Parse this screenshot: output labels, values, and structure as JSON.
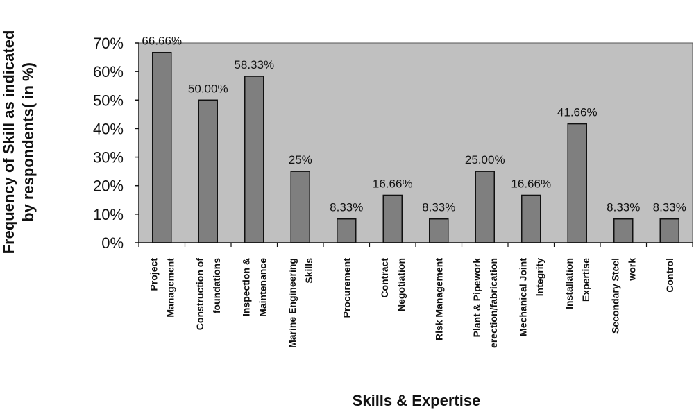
{
  "chart_data": {
    "type": "bar",
    "categories": [
      [
        "Project",
        "Management"
      ],
      [
        "Construction of",
        "foundations"
      ],
      [
        "Inspection &",
        "Maintenance"
      ],
      [
        "Marine Engineering",
        "Skills"
      ],
      [
        "Procurement"
      ],
      [
        "Contract",
        "Negotiation"
      ],
      [
        "Risk Management"
      ],
      [
        "Plant & Pipework",
        "erection/fabrication"
      ],
      [
        "Mechanical Joint",
        "Integrity"
      ],
      [
        "Installation",
        "Expertise"
      ],
      [
        "Secondary Steel",
        "work"
      ],
      [
        "Control"
      ]
    ],
    "values": [
      66.66,
      50.0,
      58.33,
      25,
      8.33,
      16.66,
      8.33,
      25.0,
      16.66,
      41.66,
      8.33,
      8.33
    ],
    "data_labels": [
      "66.66%",
      "50.00%",
      "58.33%",
      "25%",
      "8.33%",
      "16.66%",
      "8.33%",
      "25.00%",
      "16.66%",
      "41.66%",
      "8.33%",
      "8.33%"
    ],
    "ylim": [
      0,
      70
    ],
    "yticks": [
      0,
      10,
      20,
      30,
      40,
      50,
      60,
      70
    ],
    "ytick_labels": [
      "0%",
      "10%",
      "20%",
      "30%",
      "40%",
      "50%",
      "60%",
      "70%"
    ],
    "xlabel": "Skills & Expertise",
    "ylabel_lines": [
      "Frequency of Skill as indicated",
      "by respondents( in %)"
    ],
    "grid": false,
    "legend": false,
    "colors": {
      "plot_bg": "#c0c0c0",
      "bar": "#7f7f7f",
      "bar_edge": "#111111"
    }
  }
}
